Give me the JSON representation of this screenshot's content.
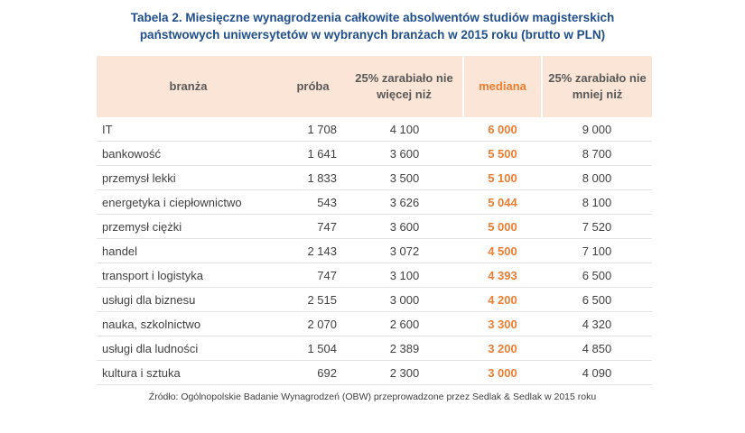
{
  "title": [
    "Tabela 2. Miesięczne wynagrodzenia całkowite absolwentów studiów magisterskich",
    "państwowych uniwersytetów w wybranych branżach w 2015 roku (brutto w PLN)"
  ],
  "table": {
    "headers": [
      "branża",
      "próba",
      "25% zarabiało nie więcej niż",
      "mediana",
      "25% zarabiało nie mniej niż"
    ],
    "rows": [
      [
        "IT",
        "1 708",
        "4 100",
        "6 000",
        "9 000"
      ],
      [
        "bankowość",
        "1 641",
        "3 600",
        "5 500",
        "8 700"
      ],
      [
        "przemysł lekki",
        "1 833",
        "3 500",
        "5 100",
        "8 000"
      ],
      [
        "energetyka i ciepłownictwo",
        "543",
        "3 626",
        "5 044",
        "8 100"
      ],
      [
        "przemysł ciężki",
        "747",
        "3 600",
        "5 000",
        "7 520"
      ],
      [
        "handel",
        "2 143",
        "3 072",
        "4 500",
        "7 100"
      ],
      [
        "transport i logistyka",
        "747",
        "3 100",
        "4 393",
        "6 500"
      ],
      [
        "usługi dla biznesu",
        "2 515",
        "3 000",
        "4 200",
        "6 500"
      ],
      [
        "nauka, szkolnictwo",
        "2 070",
        "2 600",
        "3 300",
        "4 320"
      ],
      [
        "usługi dla ludności",
        "1 504",
        "2 389",
        "3 200",
        "4 850"
      ],
      [
        "kultura i sztuka",
        "692",
        "2 300",
        "3 000",
        "4 090"
      ]
    ]
  },
  "source": "Źródło: Ogólnopolskie Badanie Wynagrodzeń (OBW) przeprowadzone przez Sedlak & Sedlak w 2015 roku"
}
